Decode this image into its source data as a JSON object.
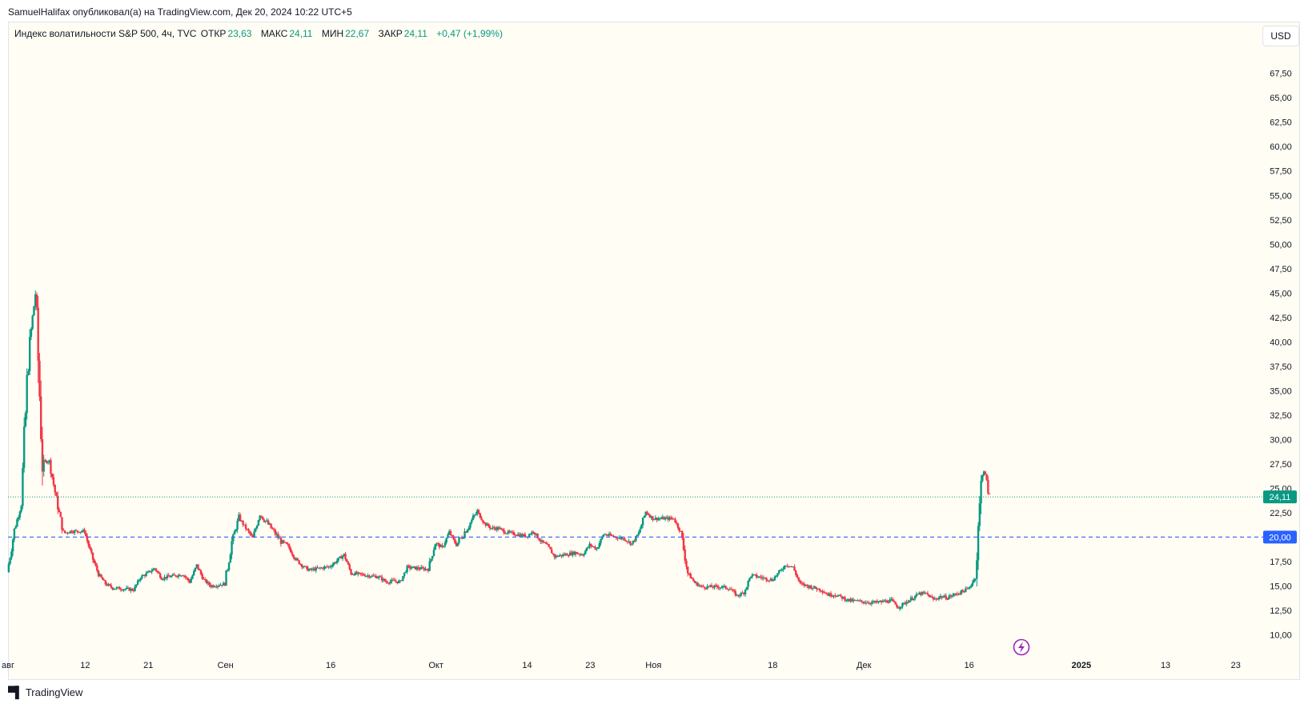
{
  "header": {
    "caption": "SamuelHalifax опубликовал(а) на TradingView.com, Дек 20, 2024 10:22 UTC+5"
  },
  "legend": {
    "title": "Индекс волатильности S&P 500, 4ч, TVC",
    "open_label": "ОТКР",
    "open_value": "23,63",
    "high_label": "МАКС",
    "high_value": "24,11",
    "low_label": "МИН",
    "low_value": "22,67",
    "close_label": "ЗАКР",
    "close_value": "24,11",
    "change": "+0,47 (+1,99%)"
  },
  "currency_button": {
    "label": "USD"
  },
  "footer": {
    "logo_text": "TradingView"
  },
  "colors": {
    "up": "#089981",
    "down": "#f23645",
    "accent_blue": "#2962ff",
    "background": "#fffdf4",
    "text": "#131722"
  },
  "icons": {
    "lightning": "lightning-icon",
    "logo": "tradingview-logo-icon"
  },
  "chart_data": {
    "type": "candlestick",
    "y_axis": {
      "range": [
        8.8,
        70.1
      ],
      "ticks": [
        10,
        12.5,
        15,
        17.5,
        20,
        22.5,
        25,
        27.5,
        30,
        32.5,
        35,
        37.5,
        40,
        42.5,
        45,
        47.5,
        50,
        52.5,
        55,
        57.5,
        60,
        62.5,
        65,
        67.5
      ],
      "tick_labels": [
        "10,00",
        "12,50",
        "15,00",
        "17,50",
        "20,00",
        "22,50",
        "25,00",
        "27,50",
        "30,00",
        "32,50",
        "35,00",
        "37,50",
        "40,00",
        "42,50",
        "45,00",
        "47,50",
        "50,00",
        "52,50",
        "55,00",
        "57,50",
        "60,00",
        "62,50",
        "65,00",
        "67,50"
      ]
    },
    "x_axis": {
      "range": [
        "2024-08-01",
        "2025-01-26"
      ],
      "ticks": [
        {
          "date": "2024-08-01",
          "label": "авг"
        },
        {
          "date": "2024-08-12",
          "label": "12"
        },
        {
          "date": "2024-08-21",
          "label": "21"
        },
        {
          "date": "2024-09-01",
          "label": "Сен"
        },
        {
          "date": "2024-09-16",
          "label": "16"
        },
        {
          "date": "2024-10-01",
          "label": "Окт"
        },
        {
          "date": "2024-10-14",
          "label": "14"
        },
        {
          "date": "2024-10-23",
          "label": "23"
        },
        {
          "date": "2024-11-01",
          "label": "Ноя"
        },
        {
          "date": "2024-11-18",
          "label": "18"
        },
        {
          "date": "2024-12-01",
          "label": "Дек"
        },
        {
          "date": "2024-12-16",
          "label": "16"
        },
        {
          "date": "2025-01-01",
          "label": "2025"
        },
        {
          "date": "2025-01-13",
          "label": "13"
        },
        {
          "date": "2025-01-23",
          "label": "23"
        }
      ]
    },
    "series": [
      {
        "kind": "close-path",
        "points": [
          [
            "2024-08-01",
            16.4
          ],
          [
            "2024-08-02",
            20.7
          ],
          [
            "2024-08-03",
            23.4
          ],
          [
            "2024-08-04",
            38.6
          ],
          [
            "2024-08-05",
            45.0
          ],
          [
            "2024-08-06",
            27.7
          ],
          [
            "2024-08-07",
            27.8
          ],
          [
            "2024-08-08",
            23.8
          ],
          [
            "2024-08-09",
            20.4
          ],
          [
            "2024-08-10",
            20.6
          ],
          [
            "2024-08-12",
            20.6
          ],
          [
            "2024-08-13",
            18.1
          ],
          [
            "2024-08-14",
            16.2
          ],
          [
            "2024-08-15",
            15.2
          ],
          [
            "2024-08-16",
            14.8
          ],
          [
            "2024-08-19",
            14.6
          ],
          [
            "2024-08-20",
            15.9
          ],
          [
            "2024-08-21",
            16.3
          ],
          [
            "2024-08-22",
            16.8
          ],
          [
            "2024-08-23",
            15.8
          ],
          [
            "2024-08-26",
            16.2
          ],
          [
            "2024-08-27",
            15.4
          ],
          [
            "2024-08-28",
            17.1
          ],
          [
            "2024-08-29",
            15.6
          ],
          [
            "2024-08-30",
            15.0
          ],
          [
            "2024-09-01",
            15.2
          ],
          [
            "2024-09-02",
            19.5
          ],
          [
            "2024-09-03",
            22.0
          ],
          [
            "2024-09-04",
            20.9
          ],
          [
            "2024-09-05",
            19.9
          ],
          [
            "2024-09-06",
            22.4
          ],
          [
            "2024-09-09",
            19.6
          ],
          [
            "2024-09-10",
            19.1
          ],
          [
            "2024-09-11",
            17.8
          ],
          [
            "2024-09-12",
            17.1
          ],
          [
            "2024-09-13",
            16.6
          ],
          [
            "2024-09-16",
            17.0
          ],
          [
            "2024-09-17",
            17.6
          ],
          [
            "2024-09-18",
            18.2
          ],
          [
            "2024-09-19",
            16.3
          ],
          [
            "2024-09-20",
            16.2
          ],
          [
            "2024-09-23",
            15.9
          ],
          [
            "2024-09-24",
            15.4
          ],
          [
            "2024-09-25",
            15.5
          ],
          [
            "2024-09-26",
            15.4
          ],
          [
            "2024-09-27",
            16.9
          ],
          [
            "2024-09-30",
            16.7
          ],
          [
            "2024-10-01",
            19.4
          ],
          [
            "2024-10-02",
            18.9
          ],
          [
            "2024-10-03",
            20.5
          ],
          [
            "2024-10-04",
            19.2
          ],
          [
            "2024-10-07",
            22.6
          ],
          [
            "2024-10-08",
            21.4
          ],
          [
            "2024-10-09",
            20.9
          ],
          [
            "2024-10-10",
            20.9
          ],
          [
            "2024-10-11",
            20.5
          ],
          [
            "2024-10-14",
            20.1
          ],
          [
            "2024-10-15",
            20.6
          ],
          [
            "2024-10-16",
            19.6
          ],
          [
            "2024-10-17",
            19.1
          ],
          [
            "2024-10-18",
            18.0
          ],
          [
            "2024-10-21",
            18.4
          ],
          [
            "2024-10-22",
            18.2
          ],
          [
            "2024-10-23",
            19.2
          ],
          [
            "2024-10-24",
            18.8
          ],
          [
            "2024-10-25",
            20.3
          ],
          [
            "2024-10-28",
            19.8
          ],
          [
            "2024-10-29",
            19.3
          ],
          [
            "2024-10-30",
            20.4
          ],
          [
            "2024-10-31",
            22.6
          ],
          [
            "2024-11-01",
            21.9
          ],
          [
            "2024-11-04",
            21.9
          ],
          [
            "2024-11-05",
            20.5
          ],
          [
            "2024-11-06",
            16.3
          ],
          [
            "2024-11-07",
            15.3
          ],
          [
            "2024-11-08",
            14.9
          ],
          [
            "2024-11-11",
            14.9
          ],
          [
            "2024-11-12",
            14.7
          ],
          [
            "2024-11-13",
            14.0
          ],
          [
            "2024-11-14",
            14.3
          ],
          [
            "2024-11-15",
            16.1
          ],
          [
            "2024-11-18",
            15.6
          ],
          [
            "2024-11-19",
            16.4
          ],
          [
            "2024-11-20",
            17.2
          ],
          [
            "2024-11-21",
            16.9
          ],
          [
            "2024-11-22",
            15.2
          ],
          [
            "2024-11-25",
            14.6
          ],
          [
            "2024-11-26",
            14.1
          ],
          [
            "2024-11-27",
            14.1
          ],
          [
            "2024-11-29",
            13.5
          ],
          [
            "2024-12-02",
            13.3
          ],
          [
            "2024-12-03",
            13.3
          ],
          [
            "2024-12-04",
            13.4
          ],
          [
            "2024-12-05",
            13.5
          ],
          [
            "2024-12-06",
            12.8
          ],
          [
            "2024-12-09",
            14.2
          ],
          [
            "2024-12-10",
            14.2
          ],
          [
            "2024-12-11",
            13.6
          ],
          [
            "2024-12-12",
            13.9
          ],
          [
            "2024-12-13",
            13.8
          ],
          [
            "2024-12-16",
            14.7
          ],
          [
            "2024-12-17",
            15.9
          ],
          [
            "2024-12-18",
            27.6
          ],
          [
            "2024-12-19",
            24.1
          ]
        ]
      }
    ],
    "last_price": {
      "value": 24.11,
      "label": "24,11"
    },
    "horizontal_line": {
      "value": 20.0,
      "label": "20,00",
      "style": "dashed"
    },
    "grid": false
  }
}
